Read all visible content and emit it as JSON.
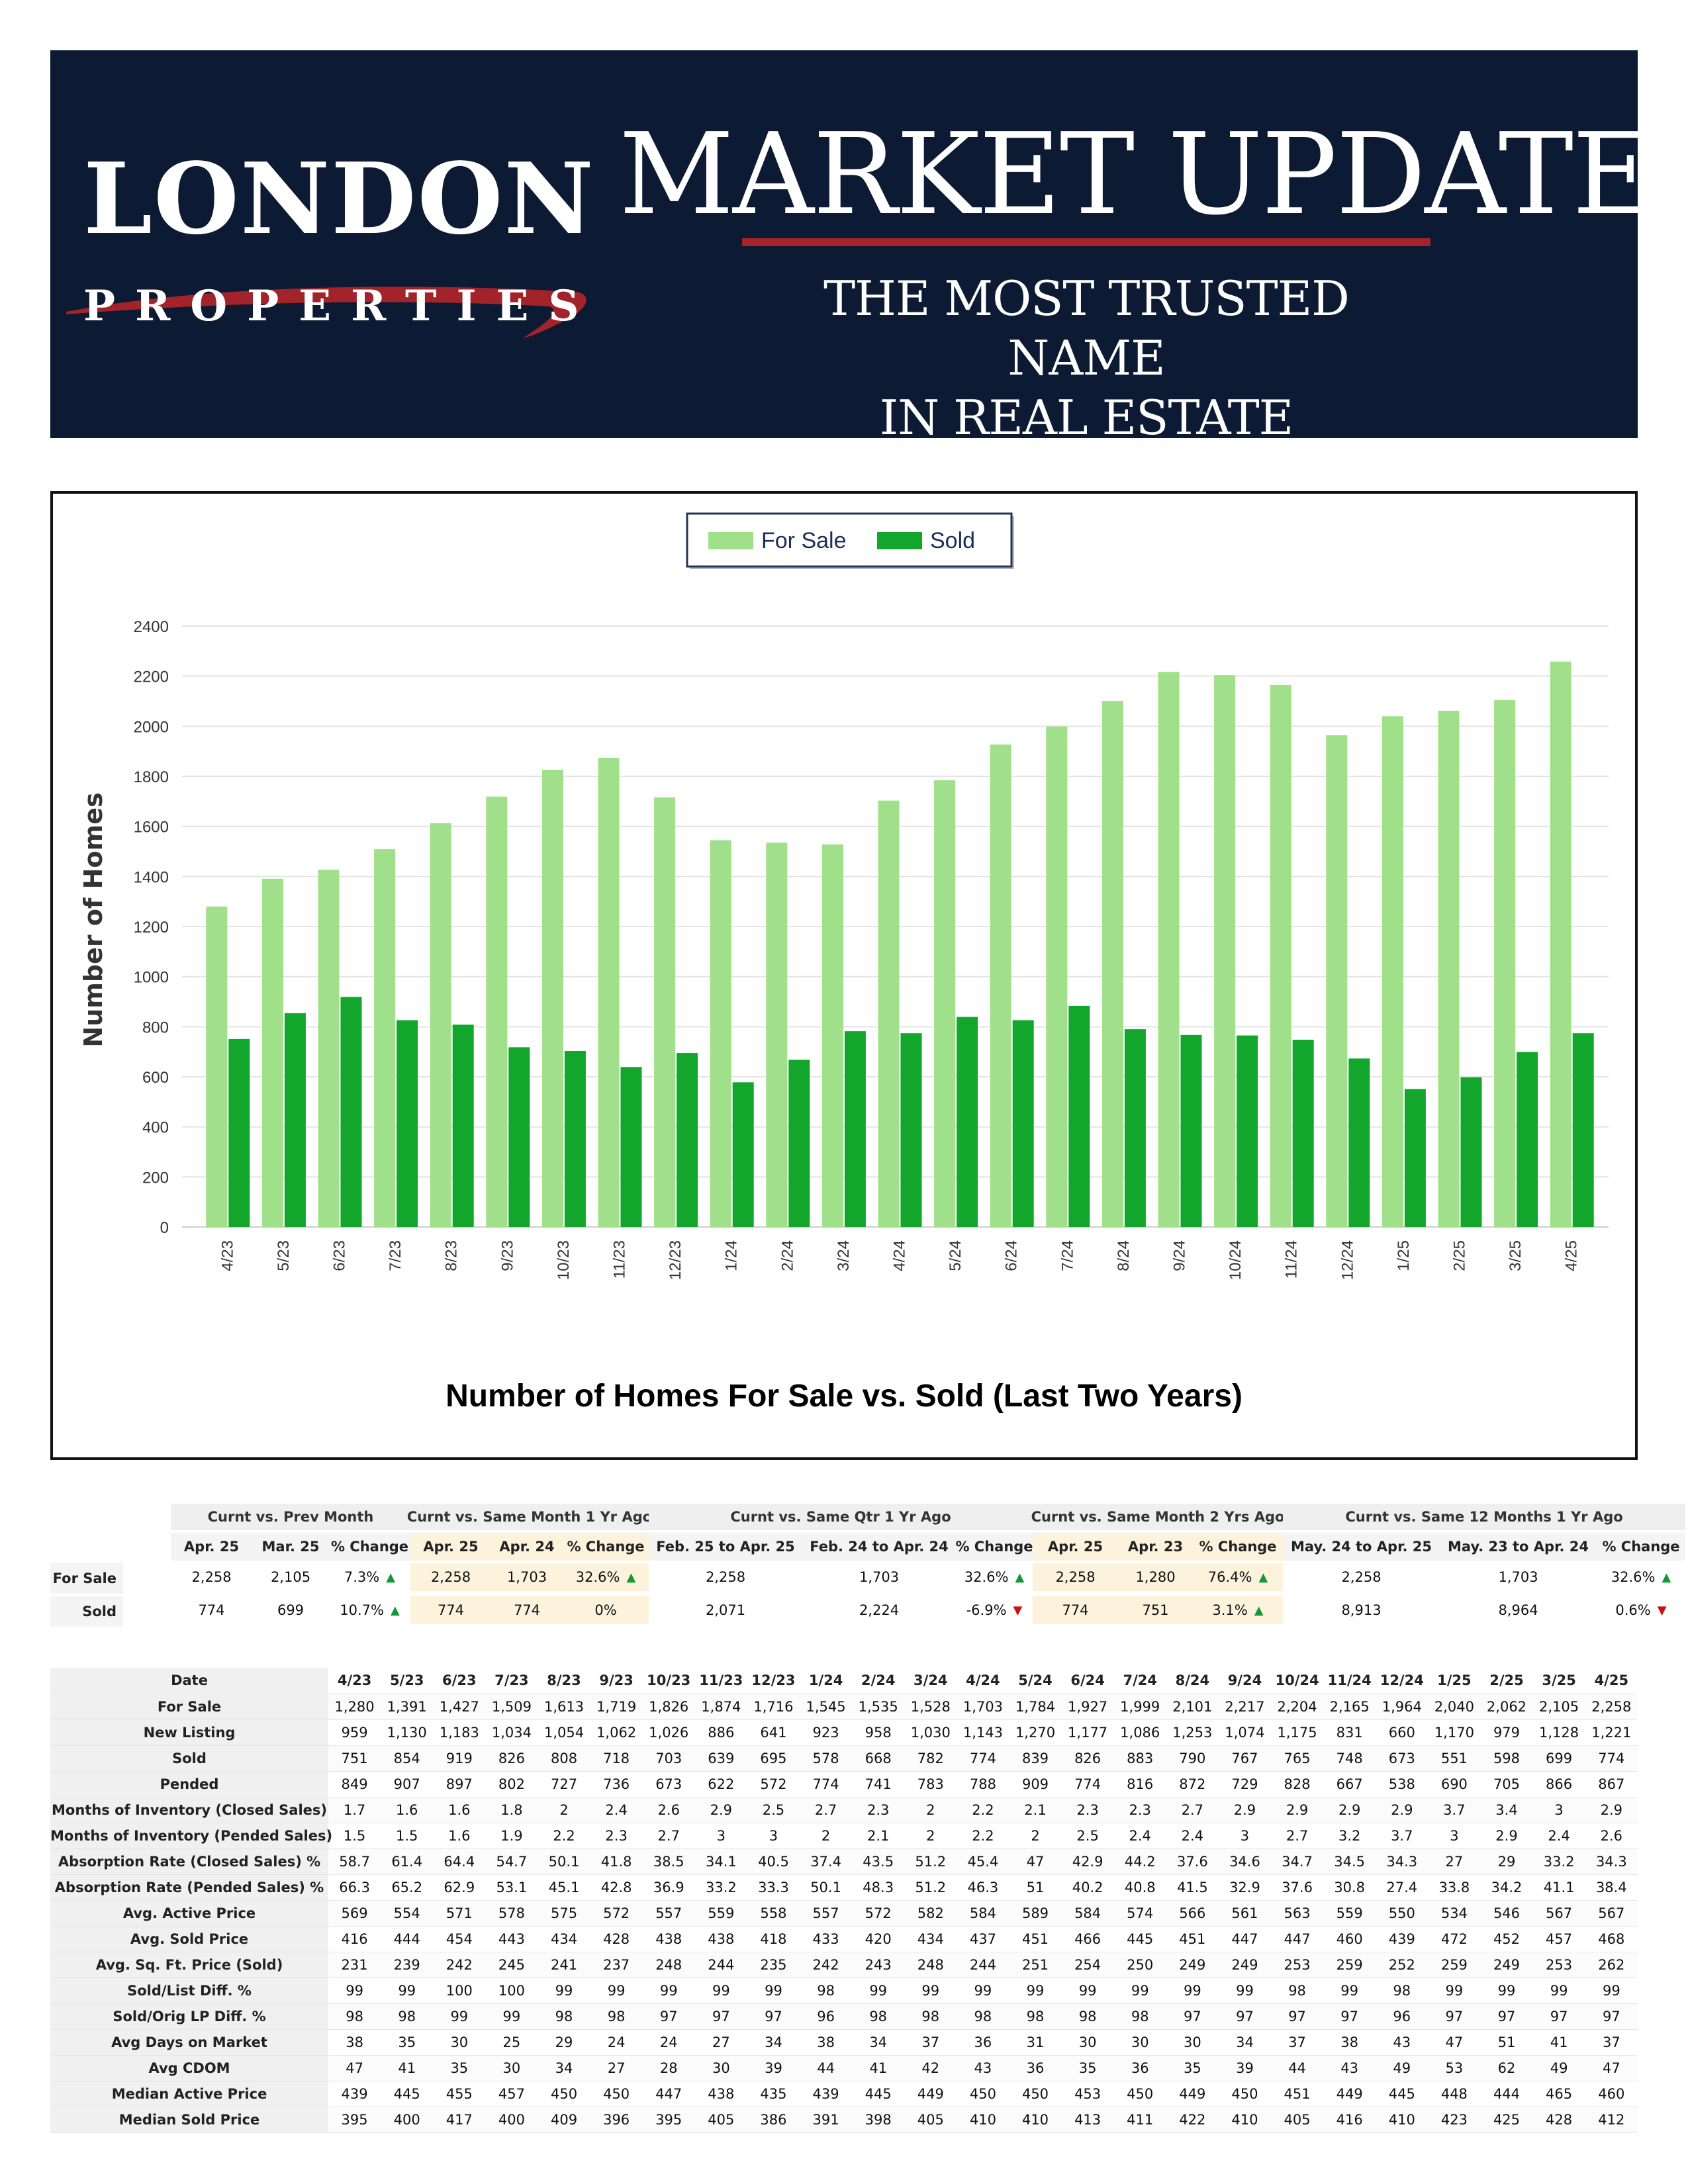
{
  "header": {
    "logo_line1": "LONDON",
    "logo_line2": "PROPERTIES",
    "title": "MARKET UPDATE",
    "tagline_line1": "THE MOST TRUSTED NAME",
    "tagline_line2": "IN REAL ESTATE",
    "accent_color": "#a3232a",
    "banner_color": "#0c1a33"
  },
  "chart_data": {
    "type": "bar",
    "title": "Number of Homes For Sale vs. Sold (Last Two Years)",
    "ylabel": "Number of Homes",
    "xlabel": "",
    "ylim": [
      0,
      2400
    ],
    "yticks": [
      0,
      200,
      400,
      600,
      800,
      1000,
      1200,
      1400,
      1600,
      1800,
      2000,
      2200,
      2400
    ],
    "grid": true,
    "legend_position": "top-center",
    "categories": [
      "4/23",
      "5/23",
      "6/23",
      "7/23",
      "8/23",
      "9/23",
      "10/23",
      "11/23",
      "12/23",
      "1/24",
      "2/24",
      "3/24",
      "4/24",
      "5/24",
      "6/24",
      "7/24",
      "8/24",
      "9/24",
      "10/24",
      "11/24",
      "12/24",
      "1/25",
      "2/25",
      "3/25",
      "4/25"
    ],
    "series": [
      {
        "name": "For Sale",
        "color": "#a1e08b",
        "values": [
          1280,
          1391,
          1427,
          1509,
          1613,
          1719,
          1826,
          1874,
          1716,
          1545,
          1535,
          1528,
          1703,
          1784,
          1927,
          1999,
          2101,
          2217,
          2204,
          2165,
          1964,
          2040,
          2062,
          2105,
          2258
        ]
      },
      {
        "name": "Sold",
        "color": "#12a72c",
        "values": [
          751,
          854,
          919,
          826,
          808,
          718,
          703,
          639,
          695,
          578,
          668,
          782,
          774,
          839,
          826,
          883,
          790,
          767,
          765,
          748,
          673,
          551,
          598,
          699,
          774
        ]
      }
    ]
  },
  "comparison": {
    "groups": [
      {
        "title": "Curnt vs. Prev Month",
        "highlight": false,
        "cols": [
          "Apr. 25",
          "Mar. 25",
          "% Change"
        ],
        "rows": [
          {
            "a": "2,258",
            "b": "2,105",
            "pct": "7.3%",
            "dir": "up"
          },
          {
            "a": "774",
            "b": "699",
            "pct": "10.7%",
            "dir": "up"
          }
        ]
      },
      {
        "title": "Curnt vs. Same Month 1 Yr Ago",
        "highlight": true,
        "cols": [
          "Apr. 25",
          "Apr. 24",
          "% Change"
        ],
        "rows": [
          {
            "a": "2,258",
            "b": "1,703",
            "pct": "32.6%",
            "dir": "up"
          },
          {
            "a": "774",
            "b": "774",
            "pct": "0%",
            "dir": ""
          }
        ]
      },
      {
        "title": "Curnt vs. Same Qtr 1 Yr Ago",
        "highlight": false,
        "cols": [
          "Feb. 25 to Apr. 25",
          "Feb. 24 to Apr. 24",
          "% Change"
        ],
        "rows": [
          {
            "a": "2,258",
            "b": "1,703",
            "pct": "32.6%",
            "dir": "up"
          },
          {
            "a": "2,071",
            "b": "2,224",
            "pct": "-6.9%",
            "dir": "down"
          }
        ]
      },
      {
        "title": "Curnt vs. Same Month 2 Yrs Ago",
        "highlight": true,
        "cols": [
          "Apr. 25",
          "Apr. 23",
          "% Change"
        ],
        "rows": [
          {
            "a": "2,258",
            "b": "1,280",
            "pct": "76.4%",
            "dir": "up"
          },
          {
            "a": "774",
            "b": "751",
            "pct": "3.1%",
            "dir": "up"
          }
        ]
      },
      {
        "title": "Curnt vs. Same 12 Months 1 Yr Ago",
        "highlight": false,
        "cols": [
          "May. 24 to Apr. 25",
          "May. 23 to Apr. 24",
          "% Change"
        ],
        "rows": [
          {
            "a": "2,258",
            "b": "1,703",
            "pct": "32.6%",
            "dir": "up"
          },
          {
            "a": "8,913",
            "b": "8,964",
            "pct": "0.6%",
            "dir": "down"
          }
        ]
      }
    ],
    "row_labels": [
      "For Sale",
      "Sold"
    ]
  },
  "monthly": {
    "header_label": "Date",
    "months": [
      "4/23",
      "5/23",
      "6/23",
      "7/23",
      "8/23",
      "9/23",
      "10/23",
      "11/23",
      "12/23",
      "1/24",
      "2/24",
      "3/24",
      "4/24",
      "5/24",
      "6/24",
      "7/24",
      "8/24",
      "9/24",
      "10/24",
      "11/24",
      "12/24",
      "1/25",
      "2/25",
      "3/25",
      "4/25"
    ],
    "rows": [
      {
        "label": "For Sale",
        "values": [
          "1,280",
          "1,391",
          "1,427",
          "1,509",
          "1,613",
          "1,719",
          "1,826",
          "1,874",
          "1,716",
          "1,545",
          "1,535",
          "1,528",
          "1,703",
          "1,784",
          "1,927",
          "1,999",
          "2,101",
          "2,217",
          "2,204",
          "2,165",
          "1,964",
          "2,040",
          "2,062",
          "2,105",
          "2,258"
        ]
      },
      {
        "label": "New Listing",
        "values": [
          "959",
          "1,130",
          "1,183",
          "1,034",
          "1,054",
          "1,062",
          "1,026",
          "886",
          "641",
          "923",
          "958",
          "1,030",
          "1,143",
          "1,270",
          "1,177",
          "1,086",
          "1,253",
          "1,074",
          "1,175",
          "831",
          "660",
          "1,170",
          "979",
          "1,128",
          "1,221"
        ]
      },
      {
        "label": "Sold",
        "values": [
          "751",
          "854",
          "919",
          "826",
          "808",
          "718",
          "703",
          "639",
          "695",
          "578",
          "668",
          "782",
          "774",
          "839",
          "826",
          "883",
          "790",
          "767",
          "765",
          "748",
          "673",
          "551",
          "598",
          "699",
          "774"
        ]
      },
      {
        "label": "Pended",
        "values": [
          "849",
          "907",
          "897",
          "802",
          "727",
          "736",
          "673",
          "622",
          "572",
          "774",
          "741",
          "783",
          "788",
          "909",
          "774",
          "816",
          "872",
          "729",
          "828",
          "667",
          "538",
          "690",
          "705",
          "866",
          "867"
        ]
      },
      {
        "label": "Months of Inventory (Closed Sales)",
        "values": [
          "1.7",
          "1.6",
          "1.6",
          "1.8",
          "2",
          "2.4",
          "2.6",
          "2.9",
          "2.5",
          "2.7",
          "2.3",
          "2",
          "2.2",
          "2.1",
          "2.3",
          "2.3",
          "2.7",
          "2.9",
          "2.9",
          "2.9",
          "2.9",
          "3.7",
          "3.4",
          "3",
          "2.9"
        ]
      },
      {
        "label": "Months of Inventory (Pended Sales)",
        "values": [
          "1.5",
          "1.5",
          "1.6",
          "1.9",
          "2.2",
          "2.3",
          "2.7",
          "3",
          "3",
          "2",
          "2.1",
          "2",
          "2.2",
          "2",
          "2.5",
          "2.4",
          "2.4",
          "3",
          "2.7",
          "3.2",
          "3.7",
          "3",
          "2.9",
          "2.4",
          "2.6"
        ]
      },
      {
        "label": "Absorption Rate (Closed Sales) %",
        "values": [
          "58.7",
          "61.4",
          "64.4",
          "54.7",
          "50.1",
          "41.8",
          "38.5",
          "34.1",
          "40.5",
          "37.4",
          "43.5",
          "51.2",
          "45.4",
          "47",
          "42.9",
          "44.2",
          "37.6",
          "34.6",
          "34.7",
          "34.5",
          "34.3",
          "27",
          "29",
          "33.2",
          "34.3"
        ]
      },
      {
        "label": "Absorption Rate (Pended Sales) %",
        "values": [
          "66.3",
          "65.2",
          "62.9",
          "53.1",
          "45.1",
          "42.8",
          "36.9",
          "33.2",
          "33.3",
          "50.1",
          "48.3",
          "51.2",
          "46.3",
          "51",
          "40.2",
          "40.8",
          "41.5",
          "32.9",
          "37.6",
          "30.8",
          "27.4",
          "33.8",
          "34.2",
          "41.1",
          "38.4"
        ]
      },
      {
        "label": "Avg. Active Price",
        "values": [
          "569",
          "554",
          "571",
          "578",
          "575",
          "572",
          "557",
          "559",
          "558",
          "557",
          "572",
          "582",
          "584",
          "589",
          "584",
          "574",
          "566",
          "561",
          "563",
          "559",
          "550",
          "534",
          "546",
          "567",
          "567"
        ]
      },
      {
        "label": "Avg. Sold Price",
        "values": [
          "416",
          "444",
          "454",
          "443",
          "434",
          "428",
          "438",
          "438",
          "418",
          "433",
          "420",
          "434",
          "437",
          "451",
          "466",
          "445",
          "451",
          "447",
          "447",
          "460",
          "439",
          "472",
          "452",
          "457",
          "468"
        ]
      },
      {
        "label": "Avg. Sq. Ft. Price (Sold)",
        "values": [
          "231",
          "239",
          "242",
          "245",
          "241",
          "237",
          "248",
          "244",
          "235",
          "242",
          "243",
          "248",
          "244",
          "251",
          "254",
          "250",
          "249",
          "249",
          "253",
          "259",
          "252",
          "259",
          "249",
          "253",
          "262"
        ]
      },
      {
        "label": "Sold/List Diff. %",
        "values": [
          "99",
          "99",
          "100",
          "100",
          "99",
          "99",
          "99",
          "99",
          "99",
          "98",
          "99",
          "99",
          "99",
          "99",
          "99",
          "99",
          "99",
          "99",
          "98",
          "99",
          "98",
          "99",
          "99",
          "99",
          "99"
        ]
      },
      {
        "label": "Sold/Orig LP Diff. %",
        "values": [
          "98",
          "98",
          "99",
          "99",
          "98",
          "98",
          "97",
          "97",
          "97",
          "96",
          "98",
          "98",
          "98",
          "98",
          "98",
          "98",
          "97",
          "97",
          "97",
          "97",
          "96",
          "97",
          "97",
          "97",
          "97"
        ]
      },
      {
        "label": "Avg Days on Market",
        "values": [
          "38",
          "35",
          "30",
          "25",
          "29",
          "24",
          "24",
          "27",
          "34",
          "38",
          "34",
          "37",
          "36",
          "31",
          "30",
          "30",
          "30",
          "34",
          "37",
          "38",
          "43",
          "47",
          "51",
          "41",
          "37"
        ]
      },
      {
        "label": "Avg CDOM",
        "values": [
          "47",
          "41",
          "35",
          "30",
          "34",
          "27",
          "28",
          "30",
          "39",
          "44",
          "41",
          "42",
          "43",
          "36",
          "35",
          "36",
          "35",
          "39",
          "44",
          "43",
          "49",
          "53",
          "62",
          "49",
          "47"
        ]
      },
      {
        "label": "Median Active Price",
        "values": [
          "439",
          "445",
          "455",
          "457",
          "450",
          "450",
          "447",
          "438",
          "435",
          "439",
          "445",
          "449",
          "450",
          "450",
          "453",
          "450",
          "449",
          "450",
          "451",
          "449",
          "445",
          "448",
          "444",
          "465",
          "460"
        ]
      },
      {
        "label": "Median Sold Price",
        "values": [
          "395",
          "400",
          "417",
          "400",
          "409",
          "396",
          "395",
          "405",
          "386",
          "391",
          "398",
          "405",
          "410",
          "410",
          "413",
          "411",
          "422",
          "410",
          "405",
          "416",
          "410",
          "423",
          "425",
          "428",
          "412"
        ]
      }
    ]
  }
}
